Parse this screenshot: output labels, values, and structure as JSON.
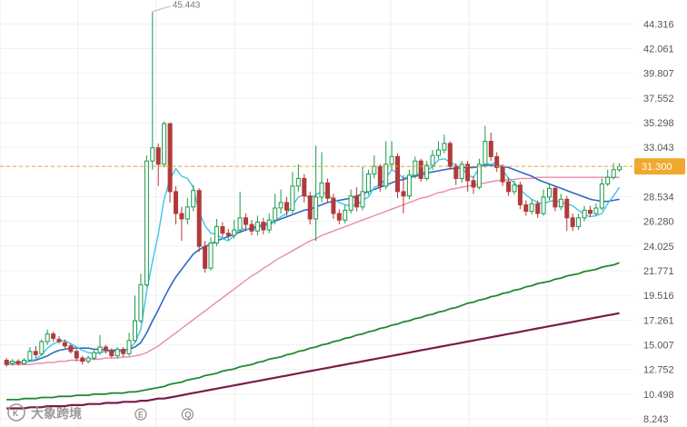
{
  "chart_data": {
    "type": "candlestick",
    "y_ticks": [
      "44.316",
      "42.061",
      "39.807",
      "37.552",
      "35.298",
      "33.043",
      "31.300",
      "28.534",
      "26.280",
      "24.025",
      "21.771",
      "19.516",
      "17.261",
      "15.007",
      "12.752",
      "10.498",
      "8.243"
    ],
    "ylim": [
      7.5,
      46.5
    ],
    "last_price": 31.3,
    "last_price_label": "31.300",
    "peak": {
      "index": 25,
      "value": 45.443,
      "label": "45.443"
    },
    "grid": true,
    "colors": {
      "up": "#1a9a4a",
      "down": "#b23a3a",
      "ma_fast": "#3ec6e6",
      "ma_mid": "#2e6cc4",
      "ma_slow": "#e88aa8",
      "ma_long": "#1e8a2e",
      "ma_longest": "#7a1a4a",
      "price_line": "#e8a23a",
      "price_tag": "#f0a830"
    },
    "candles": [
      {
        "o": 13.6,
        "c": 13.2,
        "h": 13.8,
        "l": 13.0
      },
      {
        "o": 13.3,
        "c": 13.5,
        "h": 13.7,
        "l": 13.1
      },
      {
        "o": 13.5,
        "c": 13.3,
        "h": 13.7,
        "l": 13.1
      },
      {
        "o": 13.3,
        "c": 13.6,
        "h": 13.8,
        "l": 13.2
      },
      {
        "o": 13.6,
        "c": 14.4,
        "h": 14.8,
        "l": 13.5
      },
      {
        "o": 14.4,
        "c": 14.1,
        "h": 14.9,
        "l": 13.8
      },
      {
        "o": 14.2,
        "c": 15.3,
        "h": 15.5,
        "l": 14.0
      },
      {
        "o": 15.3,
        "c": 16.0,
        "h": 16.4,
        "l": 15.0
      },
      {
        "o": 16.0,
        "c": 15.6,
        "h": 16.2,
        "l": 15.3
      },
      {
        "o": 15.5,
        "c": 15.3,
        "h": 15.8,
        "l": 15.1
      },
      {
        "o": 15.2,
        "c": 14.9,
        "h": 15.5,
        "l": 14.7
      },
      {
        "o": 14.9,
        "c": 14.4,
        "h": 15.1,
        "l": 14.2
      },
      {
        "o": 14.4,
        "c": 13.8,
        "h": 14.6,
        "l": 13.5
      },
      {
        "o": 13.8,
        "c": 13.5,
        "h": 14.0,
        "l": 13.2
      },
      {
        "o": 13.5,
        "c": 13.8,
        "h": 14.0,
        "l": 13.3
      },
      {
        "o": 13.8,
        "c": 14.3,
        "h": 14.5,
        "l": 13.6
      },
      {
        "o": 14.3,
        "c": 14.8,
        "h": 15.9,
        "l": 14.1
      },
      {
        "o": 14.8,
        "c": 14.5,
        "h": 15.0,
        "l": 14.2
      },
      {
        "o": 14.5,
        "c": 14.0,
        "h": 14.7,
        "l": 13.8
      },
      {
        "o": 14.0,
        "c": 14.6,
        "h": 14.8,
        "l": 13.8
      },
      {
        "o": 14.6,
        "c": 14.2,
        "h": 14.8,
        "l": 13.9
      },
      {
        "o": 14.2,
        "c": 15.4,
        "h": 16.1,
        "l": 14.0
      },
      {
        "o": 15.4,
        "c": 17.2,
        "h": 19.5,
        "l": 15.2
      },
      {
        "o": 17.2,
        "c": 20.5,
        "h": 21.5,
        "l": 17.0
      },
      {
        "o": 20.5,
        "c": 31.8,
        "h": 32.3,
        "l": 20.3
      },
      {
        "o": 31.8,
        "c": 33.0,
        "h": 45.4,
        "l": 31.0
      },
      {
        "o": 33.0,
        "c": 31.5,
        "h": 33.4,
        "l": 29.5
      },
      {
        "o": 31.5,
        "c": 35.2,
        "h": 35.4,
        "l": 31.2
      },
      {
        "o": 35.2,
        "c": 29.0,
        "h": 35.3,
        "l": 28.0
      },
      {
        "o": 29.0,
        "c": 27.0,
        "h": 29.5,
        "l": 26.0
      },
      {
        "o": 27.0,
        "c": 26.5,
        "h": 27.6,
        "l": 24.5
      },
      {
        "o": 26.5,
        "c": 27.6,
        "h": 28.4,
        "l": 26.0
      },
      {
        "o": 27.6,
        "c": 29.1,
        "h": 29.6,
        "l": 27.2
      },
      {
        "o": 29.1,
        "c": 24.0,
        "h": 29.3,
        "l": 23.5
      },
      {
        "o": 24.0,
        "c": 22.0,
        "h": 24.5,
        "l": 21.6
      },
      {
        "o": 22.0,
        "c": 24.3,
        "h": 24.8,
        "l": 21.8
      },
      {
        "o": 24.3,
        "c": 25.8,
        "h": 26.5,
        "l": 24.0
      },
      {
        "o": 25.8,
        "c": 25.2,
        "h": 26.2,
        "l": 24.8
      },
      {
        "o": 25.2,
        "c": 25.0,
        "h": 25.6,
        "l": 24.6
      },
      {
        "o": 25.0,
        "c": 25.5,
        "h": 26.4,
        "l": 24.7
      },
      {
        "o": 25.5,
        "c": 26.6,
        "h": 29.0,
        "l": 25.2
      },
      {
        "o": 26.6,
        "c": 26.0,
        "h": 27.0,
        "l": 25.4
      },
      {
        "o": 26.0,
        "c": 25.4,
        "h": 26.4,
        "l": 25.0
      },
      {
        "o": 25.4,
        "c": 26.2,
        "h": 26.8,
        "l": 25.0
      },
      {
        "o": 26.2,
        "c": 25.5,
        "h": 26.6,
        "l": 25.1
      },
      {
        "o": 25.5,
        "c": 26.4,
        "h": 27.0,
        "l": 25.2
      },
      {
        "o": 26.4,
        "c": 27.5,
        "h": 28.8,
        "l": 26.0
      },
      {
        "o": 27.5,
        "c": 28.0,
        "h": 29.2,
        "l": 27.0
      },
      {
        "o": 28.0,
        "c": 27.3,
        "h": 28.5,
        "l": 26.8
      },
      {
        "o": 27.3,
        "c": 29.5,
        "h": 30.8,
        "l": 27.0
      },
      {
        "o": 29.5,
        "c": 30.2,
        "h": 31.5,
        "l": 29.0
      },
      {
        "o": 30.2,
        "c": 28.6,
        "h": 30.6,
        "l": 28.0
      },
      {
        "o": 28.6,
        "c": 26.5,
        "h": 29.0,
        "l": 26.0
      },
      {
        "o": 26.5,
        "c": 28.5,
        "h": 33.2,
        "l": 24.5
      },
      {
        "o": 28.5,
        "c": 29.8,
        "h": 32.6,
        "l": 28.0
      },
      {
        "o": 29.8,
        "c": 28.4,
        "h": 30.2,
        "l": 28.0
      },
      {
        "o": 28.4,
        "c": 27.0,
        "h": 28.8,
        "l": 26.5
      },
      {
        "o": 27.0,
        "c": 26.4,
        "h": 27.4,
        "l": 26.0
      },
      {
        "o": 26.4,
        "c": 27.3,
        "h": 27.8,
        "l": 26.1
      },
      {
        "o": 27.3,
        "c": 28.6,
        "h": 29.2,
        "l": 27.0
      },
      {
        "o": 28.6,
        "c": 27.6,
        "h": 29.4,
        "l": 27.2
      },
      {
        "o": 27.6,
        "c": 29.0,
        "h": 31.3,
        "l": 27.3
      },
      {
        "o": 29.0,
        "c": 30.6,
        "h": 31.0,
        "l": 28.7
      },
      {
        "o": 30.6,
        "c": 31.3,
        "h": 32.3,
        "l": 30.2
      },
      {
        "o": 31.3,
        "c": 29.5,
        "h": 31.5,
        "l": 29.0
      },
      {
        "o": 29.5,
        "c": 31.5,
        "h": 33.6,
        "l": 29.2
      },
      {
        "o": 31.5,
        "c": 32.2,
        "h": 33.6,
        "l": 31.0
      },
      {
        "o": 32.2,
        "c": 29.0,
        "h": 32.5,
        "l": 28.4
      },
      {
        "o": 29.0,
        "c": 28.6,
        "h": 30.5,
        "l": 27.0
      },
      {
        "o": 28.6,
        "c": 30.5,
        "h": 31.0,
        "l": 28.3
      },
      {
        "o": 30.5,
        "c": 31.8,
        "h": 32.2,
        "l": 30.2
      },
      {
        "o": 31.8,
        "c": 30.2,
        "h": 32.0,
        "l": 29.9
      },
      {
        "o": 30.2,
        "c": 31.4,
        "h": 31.8,
        "l": 30.0
      },
      {
        "o": 31.4,
        "c": 32.3,
        "h": 32.8,
        "l": 31.0
      },
      {
        "o": 32.3,
        "c": 32.8,
        "h": 33.6,
        "l": 32.0
      },
      {
        "o": 32.8,
        "c": 33.4,
        "h": 34.2,
        "l": 32.5
      },
      {
        "o": 33.4,
        "c": 31.3,
        "h": 33.6,
        "l": 31.0
      },
      {
        "o": 31.3,
        "c": 30.2,
        "h": 31.6,
        "l": 29.6
      },
      {
        "o": 30.2,
        "c": 31.5,
        "h": 31.8,
        "l": 29.8
      },
      {
        "o": 31.5,
        "c": 30.0,
        "h": 31.8,
        "l": 29.0
      },
      {
        "o": 30.0,
        "c": 29.4,
        "h": 30.4,
        "l": 28.8
      },
      {
        "o": 29.4,
        "c": 31.5,
        "h": 32.0,
        "l": 29.2
      },
      {
        "o": 31.5,
        "c": 33.6,
        "h": 35.0,
        "l": 31.2
      },
      {
        "o": 33.6,
        "c": 32.2,
        "h": 34.4,
        "l": 31.8
      },
      {
        "o": 32.2,
        "c": 31.2,
        "h": 32.6,
        "l": 30.8
      },
      {
        "o": 31.2,
        "c": 29.9,
        "h": 31.5,
        "l": 29.5
      },
      {
        "o": 29.9,
        "c": 29.0,
        "h": 30.3,
        "l": 28.6
      },
      {
        "o": 29.0,
        "c": 29.6,
        "h": 30.0,
        "l": 28.7
      },
      {
        "o": 29.6,
        "c": 27.8,
        "h": 29.9,
        "l": 27.4
      },
      {
        "o": 27.8,
        "c": 27.2,
        "h": 28.2,
        "l": 26.8
      },
      {
        "o": 27.2,
        "c": 27.9,
        "h": 28.3,
        "l": 26.9
      },
      {
        "o": 27.9,
        "c": 27.0,
        "h": 28.2,
        "l": 26.6
      },
      {
        "o": 27.0,
        "c": 28.5,
        "h": 29.2,
        "l": 26.8
      },
      {
        "o": 28.5,
        "c": 29.3,
        "h": 29.7,
        "l": 28.2
      },
      {
        "o": 29.3,
        "c": 27.6,
        "h": 29.5,
        "l": 27.2
      },
      {
        "o": 27.6,
        "c": 28.3,
        "h": 28.8,
        "l": 27.3
      },
      {
        "o": 28.3,
        "c": 26.6,
        "h": 28.6,
        "l": 25.4
      },
      {
        "o": 26.6,
        "c": 25.8,
        "h": 27.0,
        "l": 25.4
      },
      {
        "o": 25.8,
        "c": 26.6,
        "h": 27.0,
        "l": 25.5
      },
      {
        "o": 26.6,
        "c": 27.3,
        "h": 27.7,
        "l": 26.3
      },
      {
        "o": 27.3,
        "c": 27.0,
        "h": 27.7,
        "l": 26.7
      },
      {
        "o": 27.0,
        "c": 27.5,
        "h": 27.9,
        "l": 26.8
      },
      {
        "o": 27.5,
        "c": 29.7,
        "h": 30.2,
        "l": 27.3
      },
      {
        "o": 29.7,
        "c": 30.3,
        "h": 31.0,
        "l": 29.5
      },
      {
        "o": 30.3,
        "c": 31.0,
        "h": 31.6,
        "l": 30.1
      },
      {
        "o": 31.0,
        "c": 31.3,
        "h": 31.6,
        "l": 30.8
      }
    ],
    "ma_fast": [
      13.4,
      13.4,
      13.4,
      13.4,
      13.5,
      13.7,
      14.1,
      14.7,
      15.1,
      15.3,
      15.4,
      15.1,
      14.8,
      14.5,
      14.3,
      14.2,
      14.3,
      14.4,
      14.4,
      14.4,
      14.4,
      14.6,
      15.2,
      16.4,
      19.9,
      22.6,
      25.1,
      28.3,
      30.1,
      31.1,
      30.4,
      30.2,
      29.4,
      27.1,
      25.9,
      25.2,
      25.1,
      24.7,
      24.5,
      25.0,
      25.6,
      25.6,
      25.5,
      25.7,
      25.9,
      25.9,
      26.3,
      26.7,
      27.0,
      27.7,
      28.5,
      28.7,
      28.4,
      28.7,
      29.0,
      28.7,
      28.3,
      28.0,
      27.8,
      27.7,
      27.8,
      28.2,
      28.5,
      29.4,
      29.6,
      30.2,
      31.0,
      30.7,
      30.2,
      30.4,
      30.6,
      30.6,
      30.9,
      31.3,
      31.9,
      32.0,
      31.7,
      31.4,
      31.2,
      30.5,
      30.3,
      31.2,
      31.6,
      31.5,
      31.7,
      31.0,
      30.2,
      29.8,
      29.2,
      28.7,
      28.3,
      28.0,
      27.9,
      28.1,
      28.2,
      28.0,
      27.9,
      27.7,
      27.3,
      26.9,
      26.7,
      26.8,
      27.0,
      27.9,
      28.6,
      29.4
    ],
    "ma_mid": [
      13.4,
      13.4,
      13.4,
      13.4,
      13.5,
      13.6,
      13.8,
      14.0,
      14.3,
      14.5,
      14.6,
      14.7,
      14.7,
      14.7,
      14.7,
      14.6,
      14.6,
      14.5,
      14.5,
      14.5,
      14.5,
      14.6,
      14.8,
      15.2,
      16.1,
      17.2,
      18.2,
      19.3,
      20.3,
      21.2,
      21.9,
      22.6,
      23.3,
      23.7,
      24.0,
      24.2,
      24.5,
      24.7,
      24.9,
      25.1,
      25.3,
      25.5,
      25.7,
      25.8,
      26.0,
      26.1,
      26.3,
      26.5,
      26.7,
      26.9,
      27.1,
      27.3,
      27.4,
      27.6,
      27.8,
      28.0,
      28.1,
      28.2,
      28.3,
      28.4,
      28.6,
      28.8,
      29.0,
      29.2,
      29.4,
      29.6,
      29.8,
      30.0,
      30.1,
      30.3,
      30.4,
      30.5,
      30.7,
      30.8,
      30.9,
      31.0,
      31.1,
      31.1,
      31.2,
      31.2,
      31.2,
      31.3,
      31.4,
      31.4,
      31.4,
      31.3,
      31.2,
      31.0,
      30.8,
      30.6,
      30.4,
      30.1,
      29.9,
      29.7,
      29.5,
      29.3,
      29.1,
      28.9,
      28.7,
      28.5,
      28.3,
      28.2,
      28.1,
      28.1,
      28.2,
      28.3
    ],
    "ma_slow": [
      13.2,
      13.2,
      13.2,
      13.2,
      13.2,
      13.3,
      13.3,
      13.4,
      13.4,
      13.5,
      13.5,
      13.6,
      13.6,
      13.6,
      13.7,
      13.7,
      13.7,
      13.8,
      13.8,
      13.8,
      13.9,
      13.9,
      14.0,
      14.1,
      14.3,
      14.6,
      14.9,
      15.3,
      15.7,
      16.1,
      16.5,
      16.9,
      17.3,
      17.7,
      18.1,
      18.5,
      18.9,
      19.3,
      19.7,
      20.1,
      20.5,
      20.9,
      21.3,
      21.6,
      22.0,
      22.3,
      22.7,
      23.0,
      23.3,
      23.6,
      23.9,
      24.2,
      24.5,
      24.7,
      25.0,
      25.2,
      25.4,
      25.6,
      25.8,
      26.0,
      26.2,
      26.4,
      26.6,
      26.8,
      27.0,
      27.2,
      27.4,
      27.6,
      27.8,
      28.0,
      28.2,
      28.4,
      28.5,
      28.7,
      28.9,
      29.0,
      29.2,
      29.3,
      29.4,
      29.5,
      29.6,
      29.7,
      29.8,
      29.9,
      30.0,
      30.0,
      30.1,
      30.1,
      30.2,
      30.2,
      30.2,
      30.3,
      30.3,
      30.3,
      30.3,
      30.3,
      30.3,
      30.3,
      30.3,
      30.3,
      30.3,
      30.3,
      30.3,
      30.3,
      30.3,
      30.3
    ],
    "ma_long": [
      10.0,
      10.0,
      10.0,
      10.1,
      10.1,
      10.1,
      10.2,
      10.2,
      10.2,
      10.3,
      10.3,
      10.3,
      10.4,
      10.4,
      10.4,
      10.5,
      10.5,
      10.5,
      10.6,
      10.6,
      10.6,
      10.7,
      10.7,
      10.8,
      10.9,
      11.0,
      11.1,
      11.2,
      11.4,
      11.5,
      11.6,
      11.8,
      11.9,
      12.0,
      12.2,
      12.3,
      12.4,
      12.6,
      12.7,
      12.8,
      13.0,
      13.1,
      13.2,
      13.4,
      13.5,
      13.7,
      13.8,
      13.9,
      14.1,
      14.2,
      14.4,
      14.5,
      14.7,
      14.8,
      15.0,
      15.1,
      15.3,
      15.4,
      15.6,
      15.7,
      15.9,
      16.0,
      16.2,
      16.3,
      16.5,
      16.6,
      16.8,
      16.9,
      17.1,
      17.2,
      17.4,
      17.5,
      17.7,
      17.8,
      18.0,
      18.1,
      18.3,
      18.4,
      18.6,
      18.8,
      18.9,
      19.1,
      19.2,
      19.4,
      19.5,
      19.7,
      19.8,
      20.0,
      20.1,
      20.3,
      20.4,
      20.6,
      20.7,
      20.8,
      21.0,
      21.1,
      21.3,
      21.4,
      21.5,
      21.7,
      21.8,
      21.9,
      22.1,
      22.2,
      22.3,
      22.5
    ],
    "ma_longest": [
      9.2,
      9.2,
      9.2,
      9.2,
      9.3,
      9.3,
      9.3,
      9.4,
      9.4,
      9.4,
      9.4,
      9.5,
      9.5,
      9.5,
      9.6,
      9.6,
      9.6,
      9.7,
      9.7,
      9.7,
      9.8,
      9.8,
      9.8,
      9.9,
      9.9,
      10.0,
      10.1,
      10.1,
      10.2,
      10.3,
      10.4,
      10.5,
      10.6,
      10.7,
      10.8,
      10.9,
      11.0,
      11.1,
      11.2,
      11.3,
      11.4,
      11.5,
      11.6,
      11.7,
      11.8,
      11.9,
      12.0,
      12.1,
      12.2,
      12.3,
      12.4,
      12.5,
      12.6,
      12.7,
      12.8,
      12.9,
      13.0,
      13.1,
      13.2,
      13.3,
      13.4,
      13.5,
      13.6,
      13.7,
      13.8,
      13.9,
      14.0,
      14.1,
      14.2,
      14.3,
      14.4,
      14.5,
      14.6,
      14.7,
      14.8,
      14.9,
      15.0,
      15.1,
      15.2,
      15.3,
      15.4,
      15.5,
      15.6,
      15.7,
      15.8,
      15.9,
      16.0,
      16.1,
      16.2,
      16.3,
      16.4,
      16.5,
      16.6,
      16.7,
      16.8,
      16.9,
      17.0,
      17.1,
      17.2,
      17.3,
      17.4,
      17.5,
      17.6,
      17.7,
      17.8,
      17.9
    ],
    "event_markers": [
      {
        "label": "E",
        "index": 23
      },
      {
        "label": "Q",
        "index": 31
      }
    ]
  },
  "watermark": {
    "text": "大象跨境",
    "logo_text": "K"
  }
}
